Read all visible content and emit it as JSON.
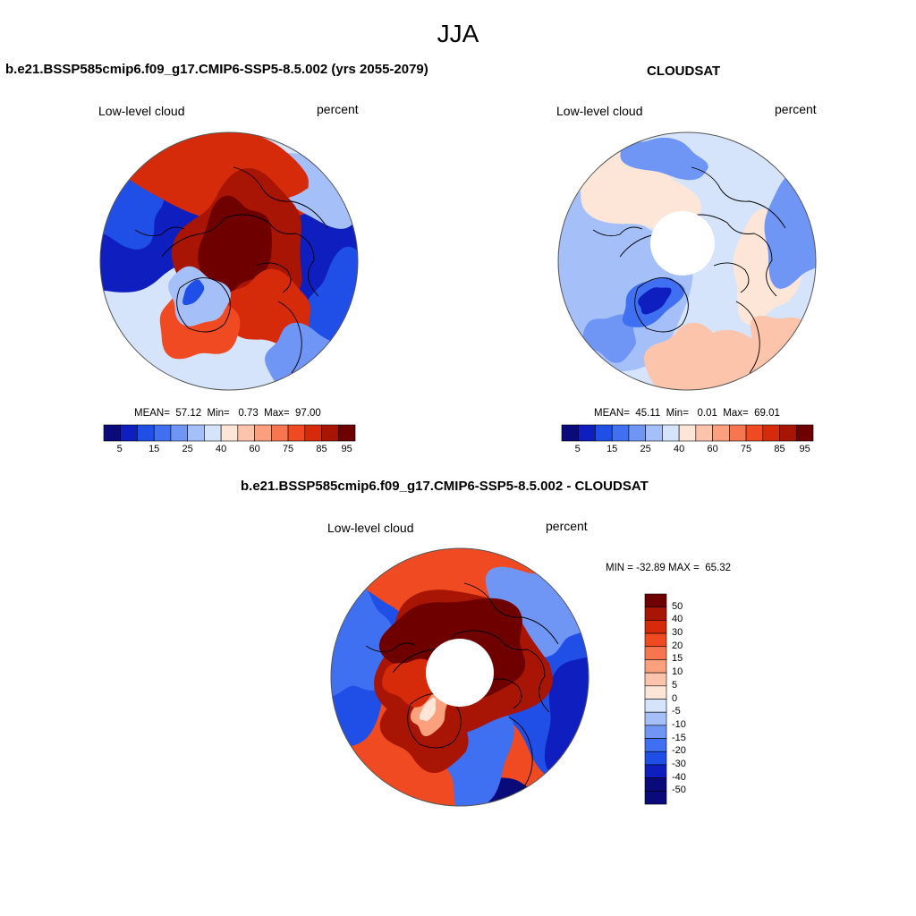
{
  "figure": {
    "title": "JJA"
  },
  "panels": [
    {
      "title": "b.e21.BSSP585cmip6.f09_g17.CMIP6-SSP5-8.5.002 (yrs 2055-2079)",
      "variable": "Low-level cloud",
      "units": "percent",
      "mean_label": "MEAN=",
      "mean": "57.12",
      "min_label": "Min=",
      "min": "0.73",
      "max_label": "Max=",
      "max": "97.00",
      "polar_hole": false,
      "colorbar_ticks": [
        "5",
        "15",
        "25",
        "40",
        "60",
        "75",
        "85",
        "95"
      ]
    },
    {
      "title": "CLOUDSAT",
      "variable": "Low-level cloud",
      "units": "percent",
      "mean_label": "MEAN=",
      "mean": "45.11",
      "min_label": "Min=",
      "min": "0.01",
      "max_label": "Max=",
      "max": "69.01",
      "polar_hole": true,
      "colorbar_ticks": [
        "5",
        "15",
        "25",
        "40",
        "60",
        "75",
        "85",
        "95"
      ]
    },
    {
      "title": "b.e21.BSSP585cmip6.f09_g17.CMIP6-SSP5-8.5.002 - CLOUDSAT",
      "variable": "Low-level cloud",
      "units": "percent",
      "minmax_text": "MIN = -32.89 MAX =  65.32",
      "polar_hole": true,
      "colorbar_ticks": [
        "50",
        "40",
        "30",
        "20",
        "15",
        "10",
        "5",
        "0",
        "-5",
        "-10",
        "-15",
        "-20",
        "-30",
        "-40",
        "-50"
      ]
    }
  ],
  "colors": {
    "abs_scale": [
      "#0a0a7a",
      "#0f1fbf",
      "#1f4fe6",
      "#3f70f2",
      "#6f96f5",
      "#a5c0f8",
      "#d5e4fb",
      "#fde6d8",
      "#fcc5ab",
      "#fba07d",
      "#f77650",
      "#f04a22",
      "#d52b0a",
      "#a81504",
      "#6e0000"
    ],
    "diff_scale": [
      "#6e0000",
      "#a81504",
      "#d52b0a",
      "#f04a22",
      "#f77650",
      "#fba07d",
      "#fcc5ab",
      "#fde6d8",
      "#d5e4fb",
      "#a5c0f8",
      "#6f96f5",
      "#3f70f2",
      "#1f4fe6",
      "#0f1fbf",
      "#0a0a7a"
    ]
  }
}
